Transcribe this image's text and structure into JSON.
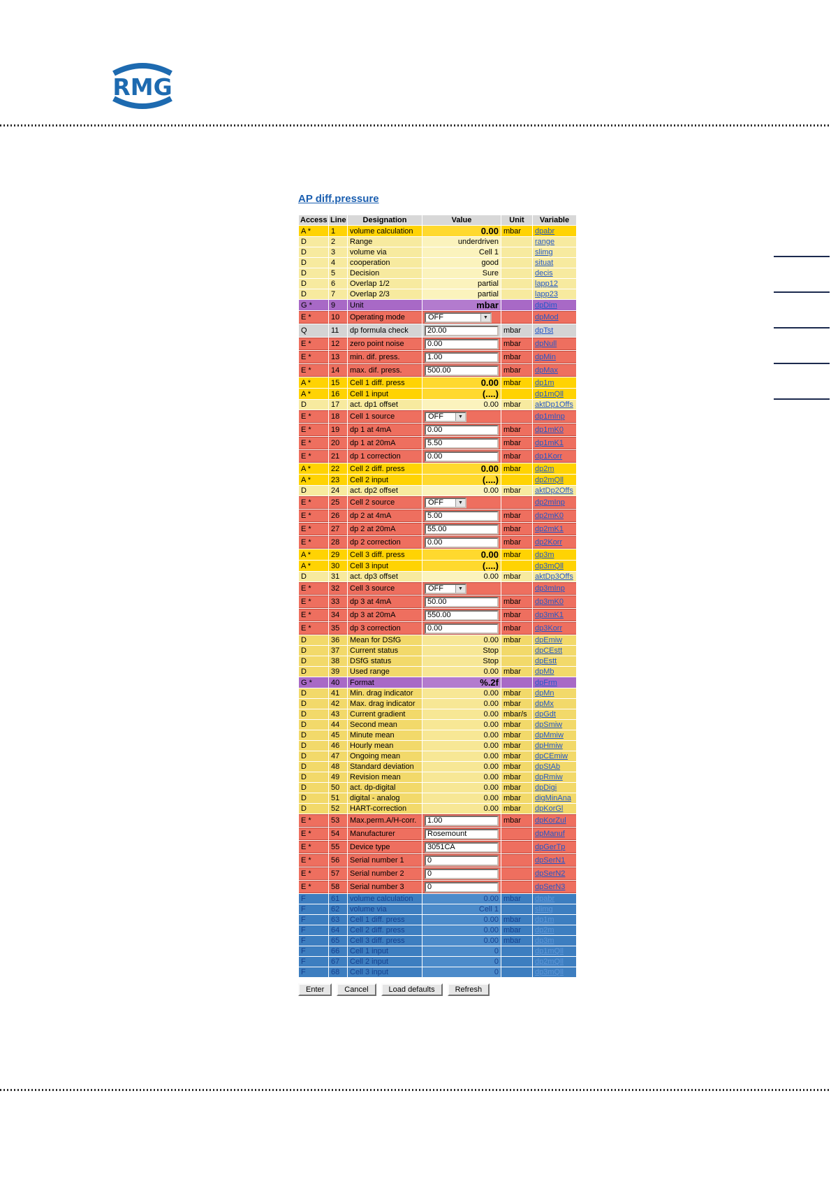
{
  "page": {
    "title": "AP diff.pressure",
    "logo_text": "RMG"
  },
  "colors": {
    "gold_row": "#ffd303",
    "pale_yellow_row": "#f7ea9f",
    "mid_yellow_row": "#f2d96a",
    "purple_row": "#a869c6",
    "red_row": "#ee6f5f",
    "gray_row": "#d4d4d4",
    "blue_row": "#3d7ec0",
    "blue_row_text": "#16418f",
    "blue_row_link": "#5d97d9",
    "link_blue": "#2257c9",
    "title_blue": "#1b5fb0",
    "logo_blue": "#1d6ab0",
    "header_gray": "#d8d8d8"
  },
  "table": {
    "headers": [
      "Access",
      "Line",
      "Designation",
      "Value",
      "Unit",
      "Variable"
    ],
    "rows": [
      {
        "access": "A *",
        "line": "1",
        "designation": "volume calculation",
        "value_kind": "static",
        "value": "0.00",
        "value_bold": true,
        "unit": "mbar",
        "variable": "dpabr",
        "row_type": "gold"
      },
      {
        "access": "D",
        "line": "2",
        "designation": "Range",
        "value_kind": "static",
        "value": "underdriven",
        "value_bold": false,
        "unit": "",
        "variable": "range",
        "row_type": "pale"
      },
      {
        "access": "D",
        "line": "3",
        "designation": "volume via",
        "value_kind": "static",
        "value": "Cell 1",
        "value_bold": false,
        "unit": "",
        "variable": "slimg",
        "row_type": "pale"
      },
      {
        "access": "D",
        "line": "4",
        "designation": "cooperation",
        "value_kind": "static",
        "value": "good",
        "value_bold": false,
        "unit": "",
        "variable": "situat",
        "row_type": "pale"
      },
      {
        "access": "D",
        "line": "5",
        "designation": "Decision",
        "value_kind": "static",
        "value": "Sure",
        "value_bold": false,
        "unit": "",
        "variable": "decis",
        "row_type": "pale"
      },
      {
        "access": "D",
        "line": "6",
        "designation": "Overlap 1/2",
        "value_kind": "static",
        "value": "partial",
        "value_bold": false,
        "unit": "",
        "variable": "lapp12",
        "row_type": "pale"
      },
      {
        "access": "D",
        "line": "7",
        "designation": "Overlap 2/3",
        "value_kind": "static",
        "value": "partial",
        "value_bold": false,
        "unit": "",
        "variable": "lapp23",
        "row_type": "pale"
      },
      {
        "access": "G *",
        "line": "9",
        "designation": "Unit",
        "value_kind": "static",
        "value": "mbar",
        "value_bold": true,
        "unit": "",
        "variable": "dpDim",
        "row_type": "purple"
      },
      {
        "access": "E *",
        "line": "10",
        "designation": "Operating mode",
        "value_kind": "select",
        "value": "OFF",
        "select_size": "wide",
        "unit": "",
        "variable": "dpMod",
        "row_type": "red"
      },
      {
        "access": "Q",
        "line": "11",
        "designation": "dp formula check",
        "value_kind": "input",
        "value": "20.00",
        "unit": "mbar",
        "variable": "dpTst",
        "row_type": "gray"
      },
      {
        "access": "E *",
        "line": "12",
        "designation": "zero point noise",
        "value_kind": "input",
        "value": "0.00",
        "unit": "mbar",
        "variable": "dpNull",
        "row_type": "red"
      },
      {
        "access": "E *",
        "line": "13",
        "designation": "min. dif. press.",
        "value_kind": "input",
        "value": "1.00",
        "unit": "mbar",
        "variable": "dpMin",
        "row_type": "red"
      },
      {
        "access": "E *",
        "line": "14",
        "designation": "max. dif. press.",
        "value_kind": "input",
        "value": "500.00",
        "unit": "mbar",
        "variable": "dpMax",
        "row_type": "red"
      },
      {
        "access": "A *",
        "line": "15",
        "designation": "Cell 1 diff. press",
        "value_kind": "static",
        "value": "0.00",
        "value_bold": true,
        "unit": "mbar",
        "variable": "dp1m",
        "row_type": "gold"
      },
      {
        "access": "A *",
        "line": "16",
        "designation": "Cell 1 input",
        "value_kind": "static",
        "value": "(....)",
        "value_bold": true,
        "unit": "",
        "variable": "dp1mQll",
        "row_type": "gold"
      },
      {
        "access": "D",
        "line": "17",
        "designation": "act. dp1 offset",
        "value_kind": "static",
        "value": "0.00",
        "value_bold": false,
        "unit": "mbar",
        "variable": "aktDp1Offs",
        "row_type": "pale"
      },
      {
        "access": "E *",
        "line": "18",
        "designation": "Cell 1 source",
        "value_kind": "select",
        "value": "OFF",
        "select_size": "narrow",
        "unit": "",
        "variable": "dp1mInp",
        "row_type": "red"
      },
      {
        "access": "E *",
        "line": "19",
        "designation": "dp 1 at 4mA",
        "value_kind": "input",
        "value": "0.00",
        "unit": "mbar",
        "variable": "dp1mK0",
        "row_type": "red"
      },
      {
        "access": "E *",
        "line": "20",
        "designation": "dp 1 at 20mA",
        "value_kind": "input",
        "value": "5.50",
        "unit": "mbar",
        "variable": "dp1mK1",
        "row_type": "red"
      },
      {
        "access": "E *",
        "line": "21",
        "designation": "dp 1 correction",
        "value_kind": "input",
        "value": "0.00",
        "unit": "mbar",
        "variable": "dp1Korr",
        "row_type": "red"
      },
      {
        "access": "A *",
        "line": "22",
        "designation": "Cell 2 diff. press",
        "value_kind": "static",
        "value": "0.00",
        "value_bold": true,
        "unit": "mbar",
        "variable": "dp2m",
        "row_type": "gold"
      },
      {
        "access": "A *",
        "line": "23",
        "designation": "Cell 2 input",
        "value_kind": "static",
        "value": "(....)",
        "value_bold": true,
        "unit": "",
        "variable": "dp2mQll",
        "row_type": "gold"
      },
      {
        "access": "D",
        "line": "24",
        "designation": "act. dp2 offset",
        "value_kind": "static",
        "value": "0.00",
        "value_bold": false,
        "unit": "mbar",
        "variable": "aktDp2Offs",
        "row_type": "pale"
      },
      {
        "access": "E *",
        "line": "25",
        "designation": "Cell 2 source",
        "value_kind": "select",
        "value": "OFF",
        "select_size": "narrow",
        "unit": "",
        "variable": "dp2mInp",
        "row_type": "red"
      },
      {
        "access": "E *",
        "line": "26",
        "designation": "dp 2 at 4mA",
        "value_kind": "input",
        "value": "5.00",
        "unit": "mbar",
        "variable": "dp2mK0",
        "row_type": "red"
      },
      {
        "access": "E *",
        "line": "27",
        "designation": "dp 2 at 20mA",
        "value_kind": "input",
        "value": "55.00",
        "unit": "mbar",
        "variable": "dp2mK1",
        "row_type": "red"
      },
      {
        "access": "E *",
        "line": "28",
        "designation": "dp 2 correction",
        "value_kind": "input",
        "value": "0.00",
        "unit": "mbar",
        "variable": "dp2Korr",
        "row_type": "red"
      },
      {
        "access": "A *",
        "line": "29",
        "designation": "Cell 3 diff. press",
        "value_kind": "static",
        "value": "0.00",
        "value_bold": true,
        "unit": "mbar",
        "variable": "dp3m",
        "row_type": "gold"
      },
      {
        "access": "A *",
        "line": "30",
        "designation": "Cell 3 input",
        "value_kind": "static",
        "value": "(....)",
        "value_bold": true,
        "unit": "",
        "variable": "dp3mQll",
        "row_type": "gold"
      },
      {
        "access": "D",
        "line": "31",
        "designation": "act. dp3 offset",
        "value_kind": "static",
        "value": "0.00",
        "value_bold": false,
        "unit": "mbar",
        "variable": "aktDp3Offs",
        "row_type": "pale"
      },
      {
        "access": "E *",
        "line": "32",
        "designation": "Cell 3 source",
        "value_kind": "select",
        "value": "OFF",
        "select_size": "narrow",
        "unit": "",
        "variable": "dp3mInp",
        "row_type": "red"
      },
      {
        "access": "E *",
        "line": "33",
        "designation": "dp 3 at 4mA",
        "value_kind": "input",
        "value": "50.00",
        "unit": "mbar",
        "variable": "dp3mK0",
        "row_type": "red"
      },
      {
        "access": "E *",
        "line": "34",
        "designation": "dp 3 at 20mA",
        "value_kind": "input",
        "value": "550.00",
        "unit": "mbar",
        "variable": "dp3mK1",
        "row_type": "red"
      },
      {
        "access": "E *",
        "line": "35",
        "designation": "dp 3 correction",
        "value_kind": "input",
        "value": "0.00",
        "unit": "mbar",
        "variable": "dp3Korr",
        "row_type": "red"
      },
      {
        "access": "D",
        "line": "36",
        "designation": "Mean for DSfG",
        "value_kind": "static",
        "value": "0.00",
        "value_bold": false,
        "unit": "mbar",
        "variable": "dpEmiw",
        "row_type": "mid"
      },
      {
        "access": "D",
        "line": "37",
        "designation": "Current status",
        "value_kind": "static",
        "value": "Stop",
        "value_bold": false,
        "unit": "",
        "variable": "dpCEstt",
        "row_type": "mid"
      },
      {
        "access": "D",
        "line": "38",
        "designation": "DSfG status",
        "value_kind": "static",
        "value": "Stop",
        "value_bold": false,
        "unit": "",
        "variable": "dpEstt",
        "row_type": "mid"
      },
      {
        "access": "D",
        "line": "39",
        "designation": "Used range",
        "value_kind": "static",
        "value": "0.00",
        "value_bold": false,
        "unit": "mbar",
        "variable": "dpMb",
        "row_type": "mid"
      },
      {
        "access": "G *",
        "line": "40",
        "designation": "Format",
        "value_kind": "static",
        "value": "%.2f",
        "value_bold": true,
        "unit": "",
        "variable": "dpFrm",
        "row_type": "purple"
      },
      {
        "access": "D",
        "line": "41",
        "designation": "Min. drag indicator",
        "value_kind": "static",
        "value": "0.00",
        "value_bold": false,
        "unit": "mbar",
        "variable": "dpMn",
        "row_type": "mid"
      },
      {
        "access": "D",
        "line": "42",
        "designation": "Max. drag indicator",
        "value_kind": "static",
        "value": "0.00",
        "value_bold": false,
        "unit": "mbar",
        "variable": "dpMx",
        "row_type": "mid"
      },
      {
        "access": "D",
        "line": "43",
        "designation": "Current gradient",
        "value_kind": "static",
        "value": "0.00",
        "value_bold": false,
        "unit": "mbar/s",
        "variable": "dpGdt",
        "row_type": "mid"
      },
      {
        "access": "D",
        "line": "44",
        "designation": "Second mean",
        "value_kind": "static",
        "value": "0.00",
        "value_bold": false,
        "unit": "mbar",
        "variable": "dpSmiw",
        "row_type": "mid"
      },
      {
        "access": "D",
        "line": "45",
        "designation": "Minute mean",
        "value_kind": "static",
        "value": "0.00",
        "value_bold": false,
        "unit": "mbar",
        "variable": "dpMmiw",
        "row_type": "mid"
      },
      {
        "access": "D",
        "line": "46",
        "designation": "Hourly mean",
        "value_kind": "static",
        "value": "0.00",
        "value_bold": false,
        "unit": "mbar",
        "variable": "dpHmiw",
        "row_type": "mid"
      },
      {
        "access": "D",
        "line": "47",
        "designation": "Ongoing mean",
        "value_kind": "static",
        "value": "0.00",
        "value_bold": false,
        "unit": "mbar",
        "variable": "dpCEmiw",
        "row_type": "mid"
      },
      {
        "access": "D",
        "line": "48",
        "designation": "Standard deviation",
        "value_kind": "static",
        "value": "0.00",
        "value_bold": false,
        "unit": "mbar",
        "variable": "dpStAb",
        "row_type": "mid"
      },
      {
        "access": "D",
        "line": "49",
        "designation": "Revision mean",
        "value_kind": "static",
        "value": "0.00",
        "value_bold": false,
        "unit": "mbar",
        "variable": "dpRmiw",
        "row_type": "mid"
      },
      {
        "access": "D",
        "line": "50",
        "designation": "act. dp-digital",
        "value_kind": "static",
        "value": "0.00",
        "value_bold": false,
        "unit": "mbar",
        "variable": "dpDigi",
        "row_type": "mid"
      },
      {
        "access": "D",
        "line": "51",
        "designation": "digital - analog",
        "value_kind": "static",
        "value": "0.00",
        "value_bold": false,
        "unit": "mbar",
        "variable": "digMinAna",
        "row_type": "mid"
      },
      {
        "access": "D",
        "line": "52",
        "designation": "HART-correction",
        "value_kind": "static",
        "value": "0.00",
        "value_bold": false,
        "unit": "mbar",
        "variable": "dpKorGl",
        "row_type": "mid"
      },
      {
        "access": "E *",
        "line": "53",
        "designation": "Max.perm.A/H-corr.",
        "value_kind": "input",
        "value": "1.00",
        "unit": "mbar",
        "variable": "dpKorZul",
        "row_type": "red"
      },
      {
        "access": "E *",
        "line": "54",
        "designation": "Manufacturer",
        "value_kind": "input",
        "value": "Rosemount",
        "unit": "",
        "variable": "dpManuf",
        "row_type": "red"
      },
      {
        "access": "E *",
        "line": "55",
        "designation": "Device type",
        "value_kind": "input",
        "value": "3051CA",
        "unit": "",
        "variable": "dpGerTp",
        "row_type": "red"
      },
      {
        "access": "E *",
        "line": "56",
        "designation": "Serial number 1",
        "value_kind": "input",
        "value": "0",
        "unit": "",
        "variable": "dpSerN1",
        "row_type": "red"
      },
      {
        "access": "E *",
        "line": "57",
        "designation": "Serial number 2",
        "value_kind": "input",
        "value": "0",
        "unit": "",
        "variable": "dpSerN2",
        "row_type": "red"
      },
      {
        "access": "E *",
        "line": "58",
        "designation": "Serial number 3",
        "value_kind": "input",
        "value": "0",
        "unit": "",
        "variable": "dpSerN3",
        "row_type": "red"
      },
      {
        "access": "F",
        "line": "61",
        "designation": "volume calculation",
        "value_kind": "static",
        "value": "0.00",
        "value_bold": false,
        "unit": "mbar",
        "variable": "dpabr",
        "row_type": "blue"
      },
      {
        "access": "F",
        "line": "62",
        "designation": "volume via",
        "value_kind": "static",
        "value": "Cell 1",
        "value_bold": false,
        "unit": "",
        "variable": "slimg",
        "row_type": "blue"
      },
      {
        "access": "F",
        "line": "63",
        "designation": "Cell 1 diff. press",
        "value_kind": "static",
        "value": "0.00",
        "value_bold": false,
        "unit": "mbar",
        "variable": "dp1m",
        "row_type": "blue"
      },
      {
        "access": "F",
        "line": "64",
        "designation": "Cell 2 diff. press",
        "value_kind": "static",
        "value": "0.00",
        "value_bold": false,
        "unit": "mbar",
        "variable": "dp2m",
        "row_type": "blue"
      },
      {
        "access": "F",
        "line": "65",
        "designation": "Cell 3 diff. press",
        "value_kind": "static",
        "value": "0.00",
        "value_bold": false,
        "unit": "mbar",
        "variable": "dp3m",
        "row_type": "blue"
      },
      {
        "access": "F",
        "line": "66",
        "designation": "Cell 1 input",
        "value_kind": "static",
        "value": "0",
        "value_bold": false,
        "unit": "",
        "variable": "dp1mQll",
        "row_type": "blue"
      },
      {
        "access": "F",
        "line": "67",
        "designation": "Cell 2 input",
        "value_kind": "static",
        "value": "0",
        "value_bold": false,
        "unit": "",
        "variable": "dp2mQll",
        "row_type": "blue"
      },
      {
        "access": "F",
        "line": "68",
        "designation": "Cell 3 input",
        "value_kind": "static",
        "value": "0",
        "value_bold": false,
        "unit": "",
        "variable": "dp3mQll",
        "row_type": "blue"
      }
    ]
  },
  "buttons": [
    "Enter",
    "Cancel",
    "Load defaults",
    "Refresh"
  ]
}
